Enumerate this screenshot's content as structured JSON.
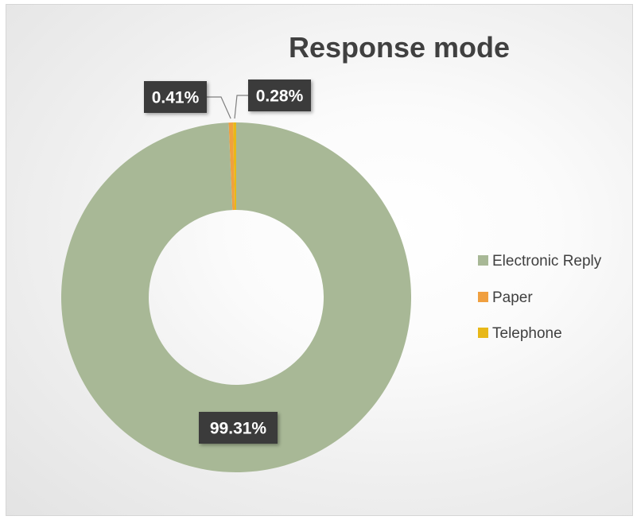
{
  "chart_data": {
    "type": "pie",
    "subtype": "doughnut",
    "title": "Response mode",
    "categories": [
      "Electronic  Reply",
      "Paper",
      "Telephone"
    ],
    "values": [
      99.31,
      0.41,
      0.28
    ],
    "labels": [
      "99.31%",
      "0.41%",
      "0.28%"
    ],
    "colors": [
      "#a8b896",
      "#f0a040",
      "#e8b818"
    ],
    "legend_position": "right"
  }
}
